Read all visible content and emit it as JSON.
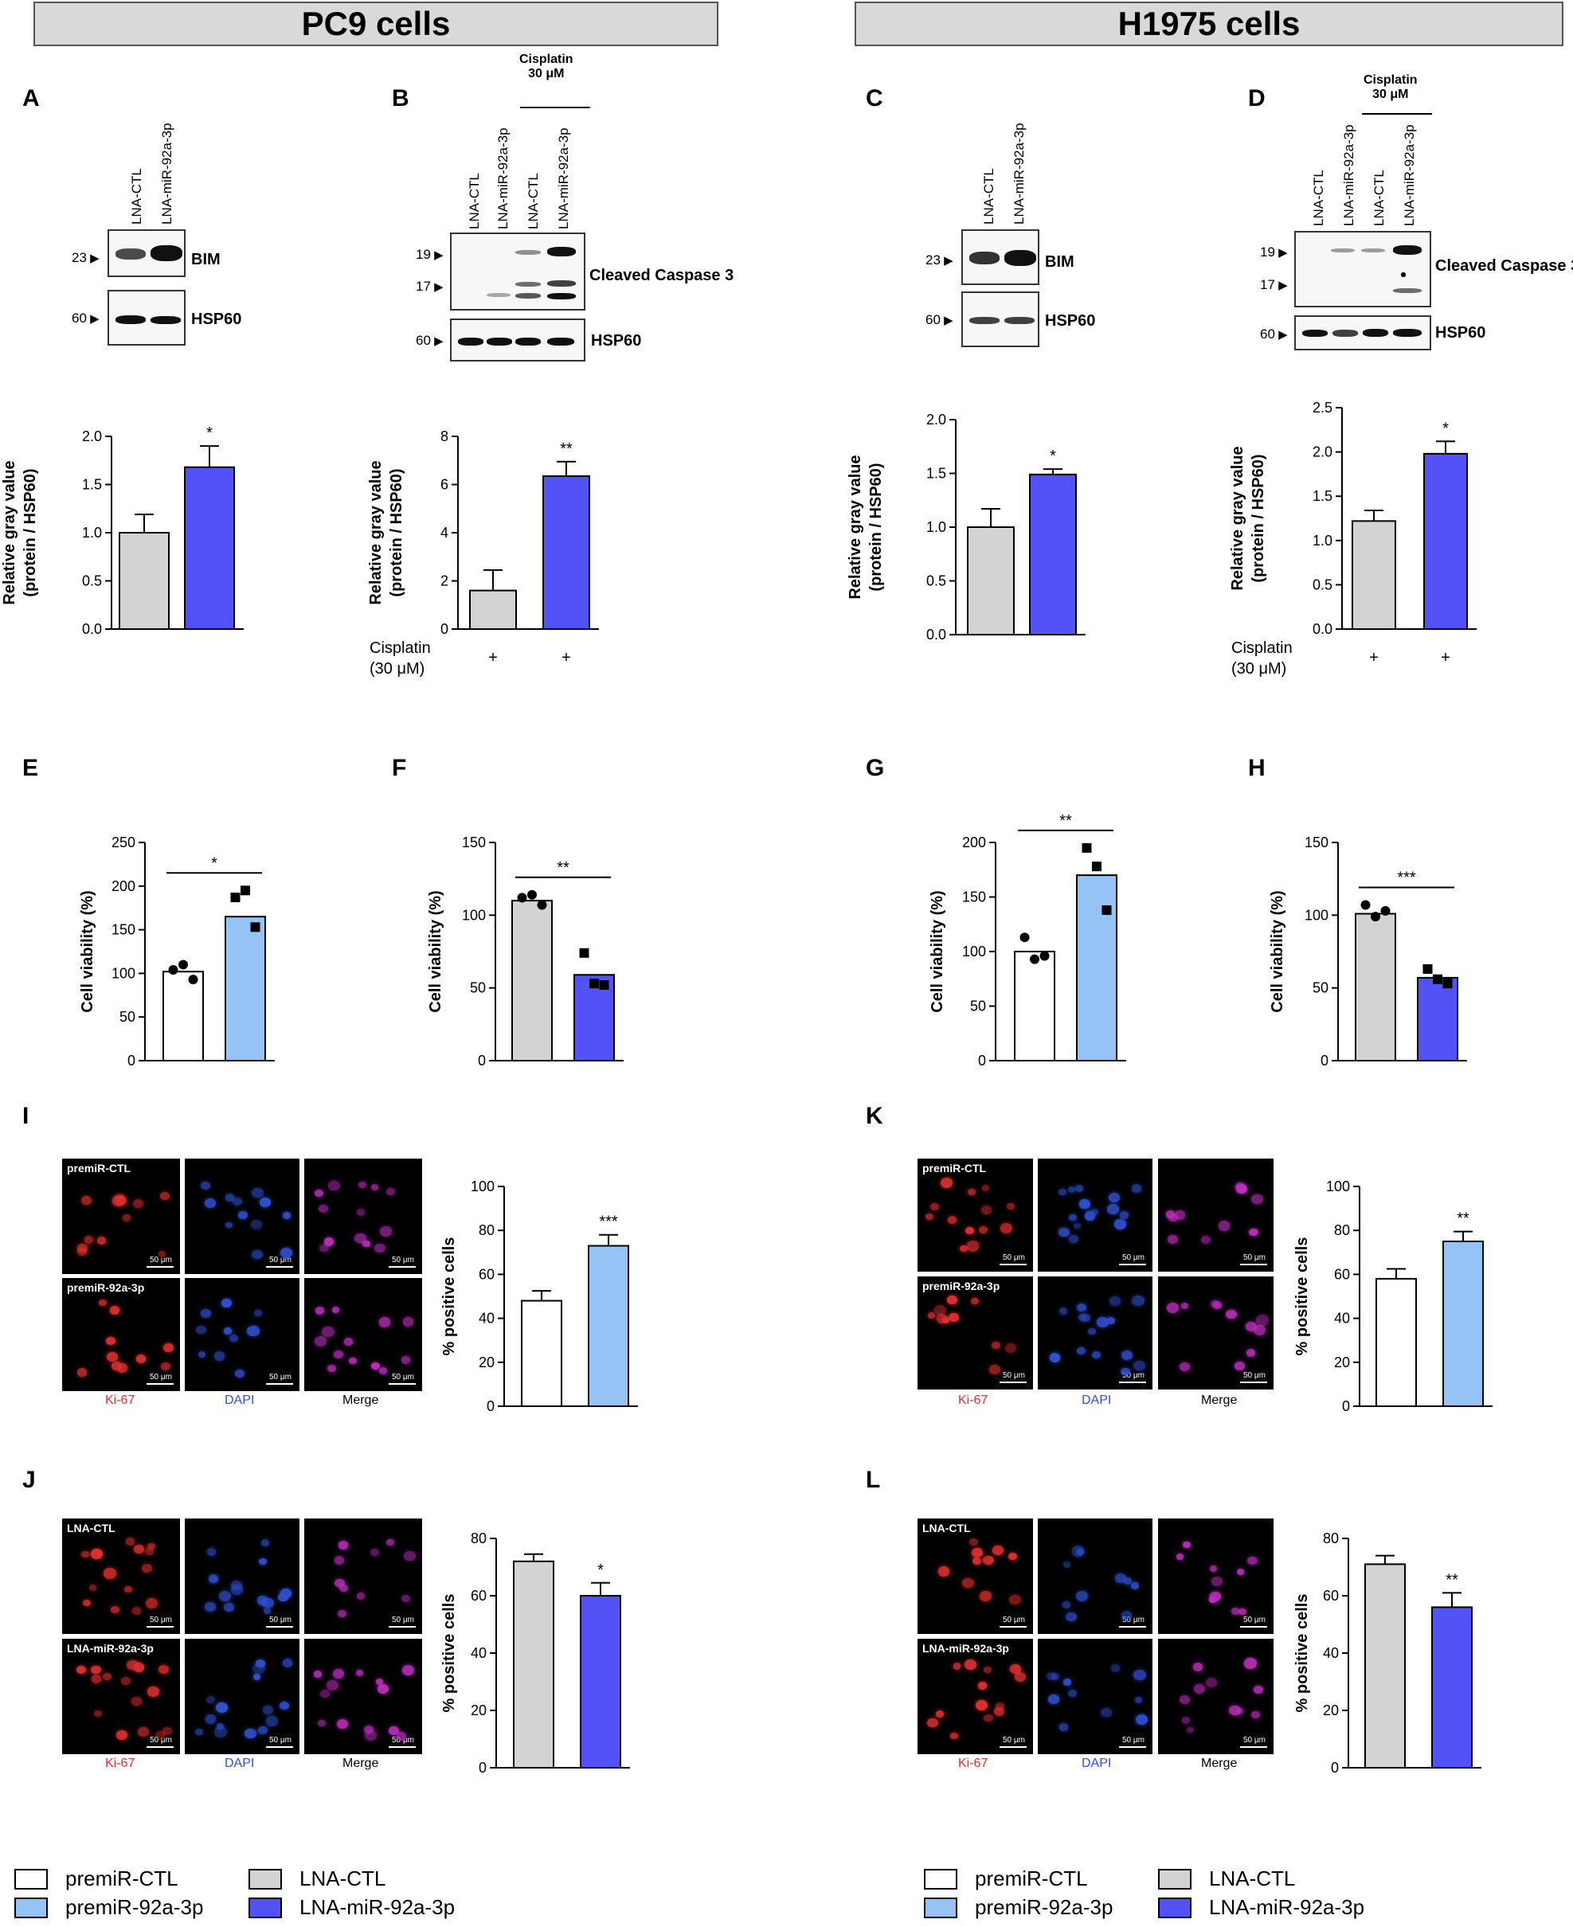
{
  "headers": {
    "left": "PC9 cells",
    "right": "H1975 cells"
  },
  "panel_letters": [
    "A",
    "B",
    "C",
    "D",
    "E",
    "F",
    "G",
    "H",
    "I",
    "K",
    "J",
    "L"
  ],
  "blots": {
    "lanes2": [
      "LNA-CTL",
      "LNA-miR-92a-3p"
    ],
    "lanes4": [
      "LNA-CTL",
      "LNA-miR-92a-3p",
      "LNA-CTL",
      "LNA-miR-92a-3p"
    ],
    "treatment": "Cisplatin\n30 μM",
    "bim": "BIM",
    "hsp60": "HSP60",
    "casp": "Cleaved Caspase 3",
    "mw23": "23",
    "mw60": "60",
    "mw19": "19",
    "mw17": "17"
  },
  "micro": {
    "premir_ctl": "premiR-CTL",
    "premir_92a": "premiR-92a-3p",
    "lna_ctl": "LNA-CTL",
    "lna_92a": "LNA-miR-92a-3p",
    "scale": "50 μm",
    "channels": [
      "Ki-67",
      "DAPI",
      "Merge"
    ]
  },
  "colors": {
    "grey": "#d3d3d3",
    "lightblue": "#96c3f5",
    "blue": "#5252f7",
    "white": "#ffffff",
    "ki67": "#e03030",
    "dapi": "#3050d0"
  },
  "legend": {
    "premir_ctl": "premiR-CTL",
    "premir_92a": "premiR-92a-3p",
    "lna_ctl": "LNA-CTL",
    "lna_92a_left": "LNA-miR-92a-3p",
    "lna_92a_right": "LNA-miR-92a-3p"
  },
  "chart_data": [
    {
      "id": "A",
      "type": "bar",
      "ylabel": "Relative gray value\n(protein / HSP60)",
      "ylim": [
        0,
        2.0
      ],
      "ticks": [
        "0.0",
        "0.5",
        "1.0",
        "1.5",
        "2.0"
      ],
      "values": [
        1.0,
        1.68
      ],
      "errors": [
        0.19,
        0.22
      ],
      "colors": [
        "grey",
        "blue"
      ],
      "sig": "*"
    },
    {
      "id": "B",
      "type": "bar",
      "ylabel": "Relative gray value\n(protein / HSP60)",
      "ylim": [
        0,
        8
      ],
      "ticks": [
        "0",
        "2",
        "4",
        "6",
        "8"
      ],
      "values": [
        1.6,
        6.35
      ],
      "errors": [
        0.85,
        0.6
      ],
      "colors": [
        "grey",
        "blue"
      ],
      "sig": "**",
      "xrow_label": "Cisplatin\n(30 μM)",
      "xrow": [
        "+",
        "+"
      ]
    },
    {
      "id": "C",
      "type": "bar",
      "ylabel": "Relative gray value\n(protein / HSP60)",
      "ylim": [
        0,
        2.0
      ],
      "ticks": [
        "0.0",
        "0.5",
        "1.0",
        "1.5",
        "2.0"
      ],
      "values": [
        1.0,
        1.49
      ],
      "errors": [
        0.17,
        0.05
      ],
      "colors": [
        "grey",
        "blue"
      ],
      "sig": "*"
    },
    {
      "id": "D",
      "type": "bar",
      "ylabel": "Relative gray value\n(protein / HSP60)",
      "ylim": [
        0,
        2.5
      ],
      "ticks": [
        "0.0",
        "0.5",
        "1.0",
        "1.5",
        "2.0",
        "2.5"
      ],
      "values": [
        1.22,
        1.98
      ],
      "errors": [
        0.12,
        0.14
      ],
      "colors": [
        "grey",
        "blue"
      ],
      "sig": "*",
      "xrow_label": "Cisplatin\n(30 μM)",
      "xrow": [
        "+",
        "+"
      ]
    },
    {
      "id": "E",
      "type": "bar",
      "ylabel": "Cell viability (%)",
      "ylim": [
        0,
        250
      ],
      "ticks": [
        "0",
        "50",
        "100",
        "150",
        "200",
        "250"
      ],
      "values": [
        102,
        165
      ],
      "colors": [
        "white",
        "lightblue"
      ],
      "sig": "*",
      "points": [
        [
          104,
          110,
          93
        ],
        [
          187,
          195,
          153
        ]
      ]
    },
    {
      "id": "F",
      "type": "bar",
      "ylabel": "Cell viability (%)",
      "ylim": [
        0,
        150
      ],
      "ticks": [
        "0",
        "50",
        "100",
        "150"
      ],
      "values": [
        110,
        59
      ],
      "colors": [
        "grey",
        "blue"
      ],
      "sig": "**",
      "points": [
        [
          112,
          114,
          107
        ],
        [
          74,
          53,
          52
        ]
      ]
    },
    {
      "id": "G",
      "type": "bar",
      "ylabel": "Cell viability (%)",
      "ylim": [
        0,
        200
      ],
      "ticks": [
        "0",
        "50",
        "100",
        "150",
        "200"
      ],
      "values": [
        100,
        170
      ],
      "colors": [
        "white",
        "lightblue"
      ],
      "sig": "**",
      "points": [
        [
          113,
          93,
          96
        ],
        [
          195,
          178,
          138
        ]
      ]
    },
    {
      "id": "H",
      "type": "bar",
      "ylabel": "Cell viability (%)",
      "ylim": [
        0,
        150
      ],
      "ticks": [
        "0",
        "50",
        "100",
        "150"
      ],
      "values": [
        101,
        57
      ],
      "colors": [
        "grey",
        "blue"
      ],
      "sig": "***",
      "points": [
        [
          107,
          99,
          103
        ],
        [
          63,
          56,
          53
        ]
      ]
    },
    {
      "id": "I",
      "type": "bar",
      "ylabel": "% positive cells",
      "ylim": [
        0,
        100
      ],
      "ticks": [
        "0",
        "20",
        "40",
        "60",
        "80",
        "100"
      ],
      "values": [
        48,
        73
      ],
      "errors": [
        4.5,
        5
      ],
      "colors": [
        "white",
        "lightblue"
      ],
      "sig": "***"
    },
    {
      "id": "K",
      "type": "bar",
      "ylabel": "% positive cells",
      "ylim": [
        0,
        100
      ],
      "ticks": [
        "0",
        "20",
        "40",
        "60",
        "80",
        "100"
      ],
      "values": [
        58,
        75
      ],
      "errors": [
        4.5,
        4.5
      ],
      "colors": [
        "white",
        "lightblue"
      ],
      "sig": "**"
    },
    {
      "id": "J",
      "type": "bar",
      "ylabel": "% positive cells",
      "ylim": [
        0,
        80
      ],
      "ticks": [
        "0",
        "20",
        "40",
        "60",
        "80"
      ],
      "values": [
        72,
        60
      ],
      "errors": [
        2.5,
        4.5
      ],
      "colors": [
        "grey",
        "blue"
      ],
      "sig": "*"
    },
    {
      "id": "L",
      "type": "bar",
      "ylabel": "% positive cells",
      "ylim": [
        0,
        80
      ],
      "ticks": [
        "0",
        "20",
        "40",
        "60",
        "80"
      ],
      "values": [
        71,
        56
      ],
      "errors": [
        3,
        5
      ],
      "colors": [
        "grey",
        "blue"
      ],
      "sig": "**"
    }
  ]
}
